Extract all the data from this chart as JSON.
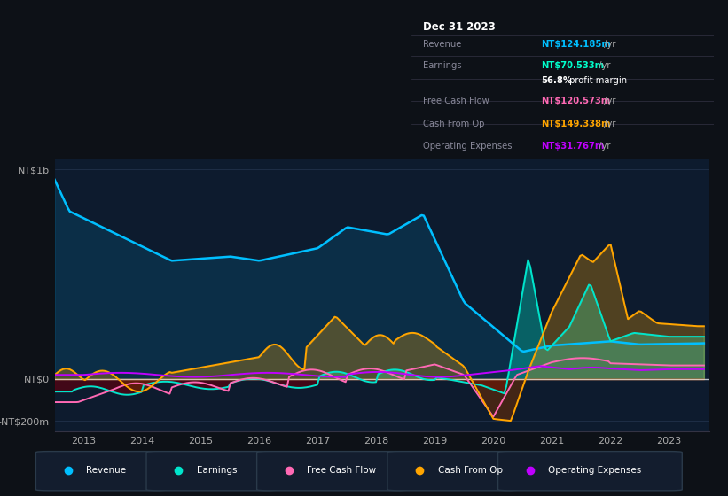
{
  "bg_color": "#0d1117",
  "plot_bg_color": "#0d1b2e",
  "title_box": {
    "date": "Dec 31 2023",
    "rows": [
      {
        "label": "Revenue",
        "value": "NT$124.185m /yr",
        "value_color": "#00bfff"
      },
      {
        "label": "Earnings",
        "value": "NT$70.533m /yr",
        "value_color": "#00ffcc"
      },
      {
        "label": "",
        "value": "56.8% profit margin",
        "value_color": "#ffffff"
      },
      {
        "label": "Free Cash Flow",
        "value": "NT$120.573m /yr",
        "value_color": "#ff69b4"
      },
      {
        "label": "Cash From Op",
        "value": "NT$149.338m /yr",
        "value_color": "#ffa500"
      },
      {
        "label": "Operating Expenses",
        "value": "NT$31.767m /yr",
        "value_color": "#bf00ff"
      }
    ]
  },
  "ylabel_top": "NT$1b",
  "ylabel_zero": "NT$0",
  "ylabel_bottom": "-NT$200m",
  "ylim": [
    -250,
    1050
  ],
  "legend": [
    {
      "label": "Revenue",
      "color": "#00bfff"
    },
    {
      "label": "Earnings",
      "color": "#00e5cc"
    },
    {
      "label": "Free Cash Flow",
      "color": "#ff69b4"
    },
    {
      "label": "Cash From Op",
      "color": "#ffa500"
    },
    {
      "label": "Operating Expenses",
      "color": "#bf00ff"
    }
  ],
  "revenue_color": "#00bfff",
  "earnings_color": "#00e5cc",
  "fcf_color": "#ff69b4",
  "cashfromop_color": "#ffa500",
  "opex_color": "#bf00ff",
  "grid_color": "#253550",
  "zero_line_color": "#ffffff"
}
